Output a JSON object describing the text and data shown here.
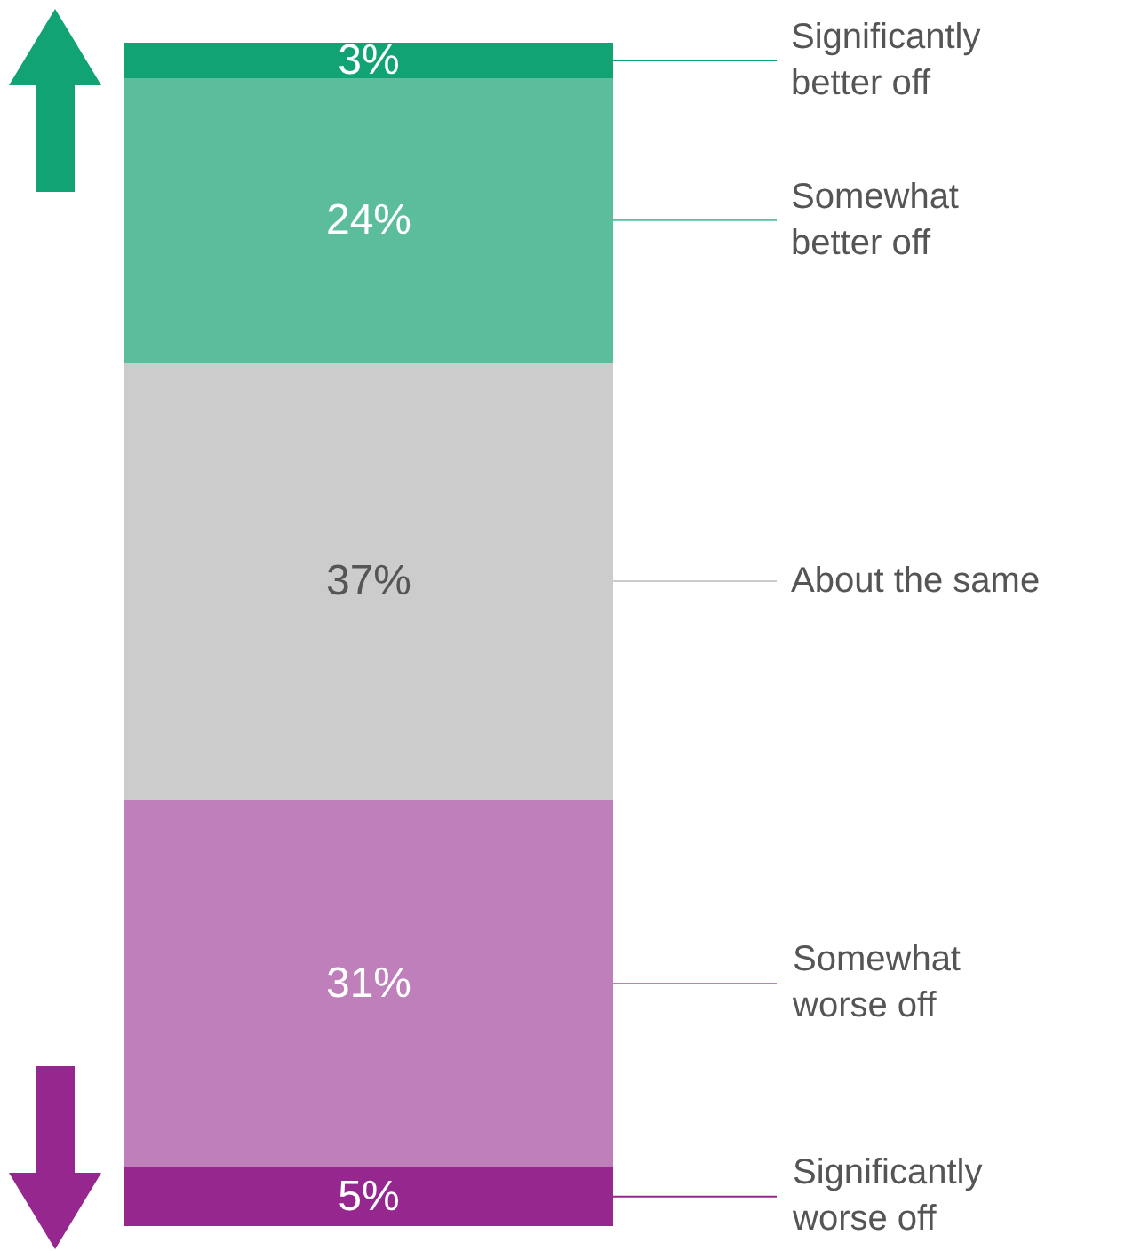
{
  "chart_data": {
    "type": "bar",
    "stacked": true,
    "categories": [
      null
    ],
    "legend": "right",
    "series": [
      {
        "name": "Significantly worse off",
        "color": "#95278f",
        "values": [
          5
        ],
        "value_labels": [
          "5%"
        ]
      },
      {
        "name": "Somewhat worse off",
        "color": "#bf7fbb",
        "values": [
          31
        ],
        "value_labels": [
          "31%"
        ]
      },
      {
        "name": "About the same",
        "color": "#cccccc",
        "values": [
          37
        ],
        "value_labels": [
          "37%"
        ]
      },
      {
        "name": "Somewhat better off",
        "color": "#5bbd9b",
        "values": [
          24
        ],
        "value_labels": [
          "24%"
        ]
      },
      {
        "name": "Significantly better off",
        "color": "#12a374",
        "values": [
          3
        ],
        "value_labels": [
          "3%"
        ]
      }
    ]
  }
}
